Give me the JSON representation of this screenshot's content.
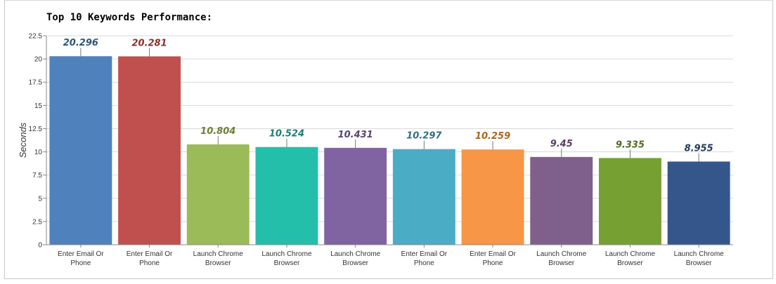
{
  "chart_data": {
    "type": "bar",
    "title": "Top 10 Keywords Performance:",
    "xlabel": "",
    "ylabel": "Seconds",
    "ylim": [
      0,
      22.5
    ],
    "yticks": [
      "0",
      "2.5",
      "5",
      "7.5",
      "10",
      "12.5",
      "15",
      "17.5",
      "20",
      "22.5"
    ],
    "categories": [
      "Enter Email Or Phone",
      "Enter Email Or Phone",
      "Launch Chrome Browser",
      "Launch Chrome Browser",
      "Launch Chrome Browser",
      "Enter Email Or Phone",
      "Enter Email Or Phone",
      "Launch Chrome Browser",
      "Launch Chrome Browser",
      "Launch Chrome Browser"
    ],
    "category_lines": [
      [
        "Enter Email Or",
        "Phone"
      ],
      [
        "Enter Email Or",
        "Phone"
      ],
      [
        "Launch Chrome",
        "Browser"
      ],
      [
        "Launch Chrome",
        "Browser"
      ],
      [
        "Launch Chrome",
        "Browser"
      ],
      [
        "Enter Email Or",
        "Phone"
      ],
      [
        "Enter Email Or",
        "Phone"
      ],
      [
        "Launch Chrome",
        "Browser"
      ],
      [
        "Launch Chrome",
        "Browser"
      ],
      [
        "Launch Chrome",
        "Browser"
      ]
    ],
    "values": [
      20.296,
      20.281,
      10.804,
      10.524,
      10.431,
      10.297,
      10.259,
      9.45,
      9.335,
      8.955
    ],
    "value_labels": [
      "20.296",
      "20.281",
      "10.804",
      "10.524",
      "10.431",
      "10.297",
      "10.259",
      "9.45",
      "9.335",
      "8.955"
    ],
    "colors": [
      "#4f81bd",
      "#c0504d",
      "#9bbb59",
      "#23bfaa",
      "#8064a2",
      "#4bacc6",
      "#f79646",
      "#7f5f8c",
      "#77a032",
      "#34568b"
    ],
    "label_colors": [
      "#2f5478",
      "#8a2e2b",
      "#6a7f35",
      "#1a7f72",
      "#5a4275",
      "#2f6f83",
      "#a8651f",
      "#5a3d66",
      "#4e6b1f",
      "#223a5e"
    ],
    "grid": true,
    "legend": "none"
  }
}
